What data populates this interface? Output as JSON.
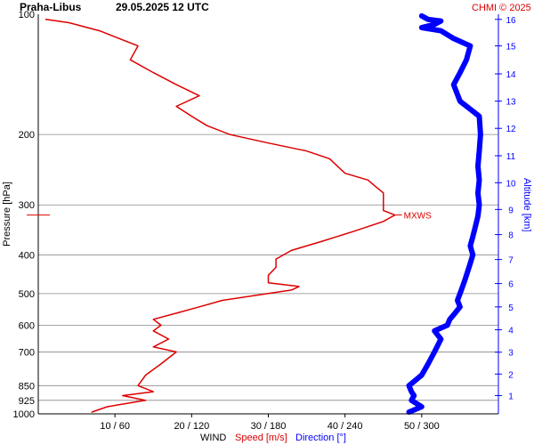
{
  "header": {
    "station": "Praha-Libus",
    "datetime": "29.05.2025 12 UTC",
    "copyright": "CHMI © 2025"
  },
  "colors": {
    "speed": "#dd0000",
    "direction": "#0000ff",
    "grid": "#888888",
    "axis": "#000000"
  },
  "chart_data": {
    "type": "line",
    "ylabel": "Pressure [hPa]",
    "y2label": "Altitude [km]",
    "xlabel_prefix": "WIND",
    "xlabel_speed": "Speed [m/s]",
    "xlabel_direction": "Direction [°]",
    "ylim": [
      1000,
      100
    ],
    "y_scale": "log",
    "pressure_ticks": [
      100,
      200,
      300,
      400,
      500,
      600,
      700,
      850,
      925,
      1000
    ],
    "altitude_ticks": [
      1,
      2,
      3,
      4,
      5,
      6,
      7,
      8,
      9,
      10,
      11,
      12,
      13,
      14,
      15,
      16
    ],
    "altitude_km_to_pressure_hPa": [
      [
        1,
        900
      ],
      [
        2,
        795
      ],
      [
        3,
        701
      ],
      [
        4,
        616
      ],
      [
        5,
        540
      ],
      [
        6,
        472
      ],
      [
        7,
        411
      ],
      [
        8,
        356
      ],
      [
        9,
        308
      ],
      [
        10,
        264
      ],
      [
        11,
        226
      ],
      [
        12,
        193
      ],
      [
        13,
        165
      ],
      [
        14,
        141
      ],
      [
        15,
        120
      ],
      [
        16,
        103
      ]
    ],
    "speed_xlim": [
      0,
      60
    ],
    "direction_xlim": [
      0,
      360
    ],
    "x_tick_labels": [
      "10 / 60",
      "20 / 120",
      "30 / 180",
      "40 / 240",
      "50 / 300"
    ],
    "x_tick_speeds": [
      10,
      20,
      30,
      40,
      50
    ],
    "annotation": {
      "text": "MXWS",
      "pressure": 318,
      "speed": 46.5
    },
    "series": [
      {
        "name": "Speed [m/s]",
        "axis": "speed",
        "points": [
          [
            990,
            7
          ],
          [
            960,
            9
          ],
          [
            925,
            14
          ],
          [
            900,
            11
          ],
          [
            880,
            15
          ],
          [
            850,
            13
          ],
          [
            800,
            14
          ],
          [
            750,
            16
          ],
          [
            700,
            18
          ],
          [
            680,
            15
          ],
          [
            650,
            17
          ],
          [
            620,
            15
          ],
          [
            600,
            16
          ],
          [
            580,
            15
          ],
          [
            560,
            18
          ],
          [
            540,
            21
          ],
          [
            520,
            24
          ],
          [
            500,
            30
          ],
          [
            490,
            33
          ],
          [
            480,
            34
          ],
          [
            470,
            30
          ],
          [
            450,
            30
          ],
          [
            430,
            31
          ],
          [
            410,
            31
          ],
          [
            390,
            33
          ],
          [
            370,
            37
          ],
          [
            350,
            41
          ],
          [
            340,
            43
          ],
          [
            330,
            45
          ],
          [
            318,
            46.5
          ],
          [
            310,
            45
          ],
          [
            300,
            45
          ],
          [
            280,
            45
          ],
          [
            270,
            44
          ],
          [
            260,
            43
          ],
          [
            250,
            40
          ],
          [
            240,
            39
          ],
          [
            230,
            38
          ],
          [
            220,
            35
          ],
          [
            210,
            30
          ],
          [
            200,
            25
          ],
          [
            190,
            22
          ],
          [
            180,
            20
          ],
          [
            170,
            18
          ],
          [
            160,
            21
          ],
          [
            150,
            18
          ],
          [
            140,
            15
          ],
          [
            130,
            12
          ],
          [
            120,
            13
          ],
          [
            110,
            8
          ],
          [
            105,
            4
          ],
          [
            103,
            1
          ]
        ]
      },
      {
        "name": "Direction [°]",
        "axis": "direction",
        "points": [
          [
            990,
            290
          ],
          [
            960,
            300
          ],
          [
            925,
            292
          ],
          [
            900,
            294
          ],
          [
            880,
            292
          ],
          [
            850,
            290
          ],
          [
            800,
            300
          ],
          [
            750,
            305
          ],
          [
            700,
            310
          ],
          [
            650,
            315
          ],
          [
            620,
            310
          ],
          [
            600,
            320
          ],
          [
            580,
            322
          ],
          [
            560,
            326
          ],
          [
            540,
            330
          ],
          [
            520,
            328
          ],
          [
            500,
            330
          ],
          [
            480,
            332
          ],
          [
            460,
            334
          ],
          [
            440,
            336
          ],
          [
            420,
            338
          ],
          [
            400,
            340
          ],
          [
            380,
            338
          ],
          [
            360,
            340
          ],
          [
            340,
            342
          ],
          [
            320,
            344
          ],
          [
            300,
            345
          ],
          [
            280,
            344
          ],
          [
            260,
            345
          ],
          [
            240,
            344
          ],
          [
            220,
            345
          ],
          [
            200,
            346
          ],
          [
            180,
            345
          ],
          [
            165,
            330
          ],
          [
            150,
            325
          ],
          [
            140,
            330
          ],
          [
            130,
            335
          ],
          [
            120,
            338
          ],
          [
            115,
            325
          ],
          [
            110,
            315
          ],
          [
            108,
            300
          ],
          [
            106,
            310
          ],
          [
            104,
            315
          ],
          [
            103,
            305
          ],
          [
            101,
            300
          ]
        ]
      }
    ]
  }
}
